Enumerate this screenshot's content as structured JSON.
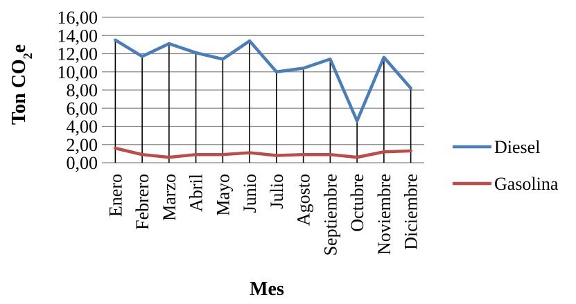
{
  "chart_data": {
    "type": "line",
    "title": "",
    "xlabel": "Mes",
    "ylabel_main": "Ton CO",
    "ylabel_sub": "2",
    "ylabel_tail": "e",
    "ylim": [
      0,
      16
    ],
    "y_ticks": [
      "0,00",
      "2,00",
      "4,00",
      "6,00",
      "8,00",
      "10,00",
      "12,00",
      "14,00",
      "16,00"
    ],
    "grid": true,
    "legend_position": "right",
    "categories": [
      "Enero",
      "Febrero",
      "Marzo",
      "Abril",
      "Mayo",
      "Junio",
      "Julio",
      "Agosto",
      "Septiembre",
      "Octubre",
      "Noviembre",
      "Diciembre"
    ],
    "series": [
      {
        "name": "Diesel",
        "color": "#4a7ebb",
        "values": [
          13.5,
          11.7,
          13.1,
          12.1,
          11.4,
          13.4,
          10.0,
          10.4,
          11.4,
          4.6,
          11.6,
          8.2
        ]
      },
      {
        "name": "Gasolina",
        "color": "#be4b48",
        "values": [
          1.6,
          0.9,
          0.6,
          0.9,
          0.9,
          1.1,
          0.8,
          0.9,
          0.9,
          0.6,
          1.2,
          1.3
        ]
      }
    ]
  }
}
